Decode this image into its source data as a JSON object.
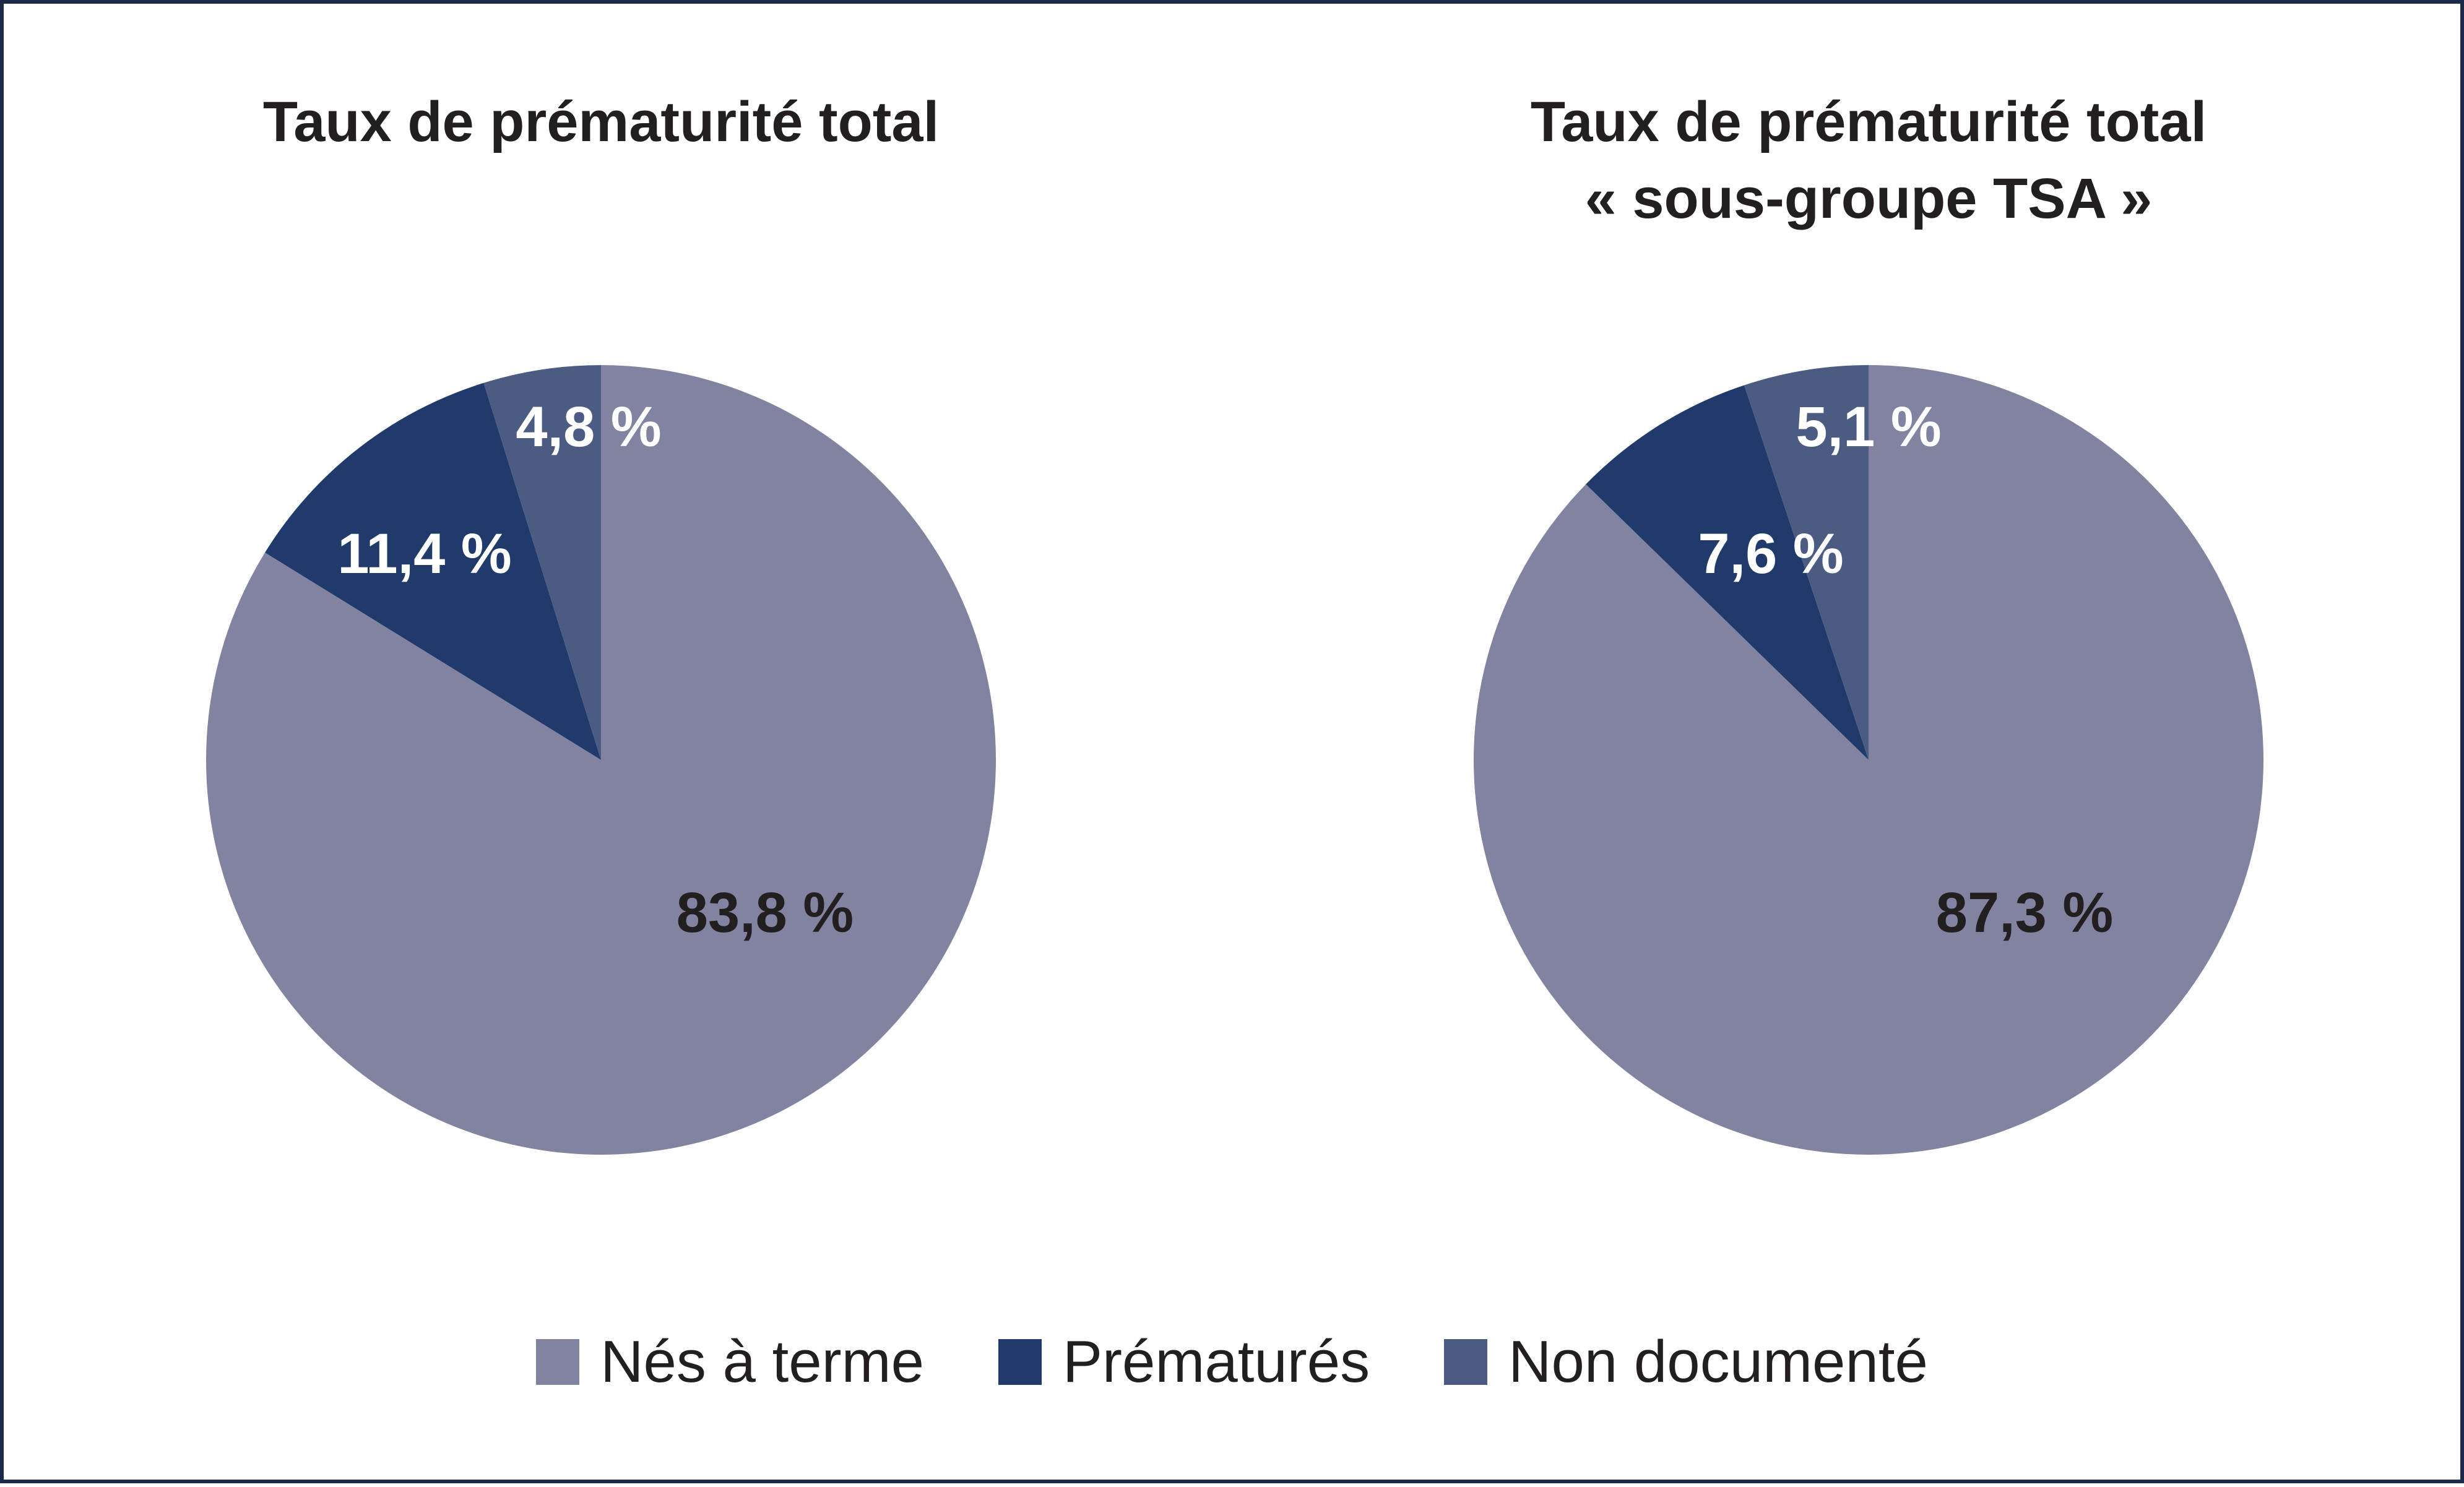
{
  "legend": [
    {
      "label": "Nés à terme",
      "color": "#8283a1"
    },
    {
      "label": "Prématurés",
      "color": "#1f3a6b"
    },
    {
      "label": "Non documenté",
      "color": "#4b5b82"
    }
  ],
  "chart_data": [
    {
      "type": "pie",
      "title": [
        "Taux de prématurité total"
      ],
      "categories": [
        "Nés à terme",
        "Prématurés",
        "Non documenté"
      ],
      "values": [
        83.8,
        11.4,
        4.8
      ],
      "labels": [
        "83,8 %",
        "11,4 %",
        "4,8 %"
      ],
      "colors": [
        "#8283a1",
        "#1f3a6b",
        "#4b5b82"
      ],
      "label_colors": [
        "#231f20",
        "#ffffff",
        "#ffffff"
      ],
      "legend_position": "bottom"
    },
    {
      "type": "pie",
      "title": [
        "Taux de prématurité total",
        "« sous-groupe TSA »"
      ],
      "categories": [
        "Nés à terme",
        "Prématurés",
        "Non documenté"
      ],
      "values": [
        87.3,
        7.6,
        5.1
      ],
      "labels": [
        "87,3 %",
        "7,6 %",
        "5,1 %"
      ],
      "colors": [
        "#8283a1",
        "#1f3a6b",
        "#4b5b82"
      ],
      "label_colors": [
        "#231f20",
        "#ffffff",
        "#ffffff"
      ],
      "legend_position": "bottom"
    }
  ]
}
